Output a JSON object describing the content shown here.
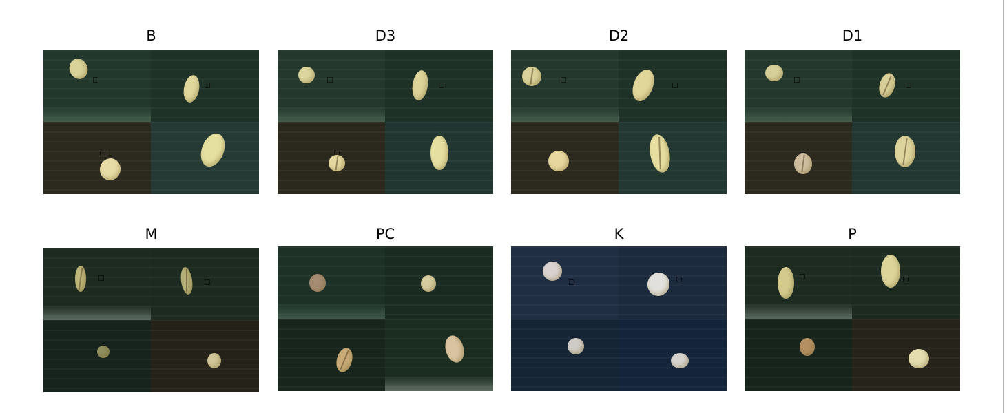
{
  "figure": {
    "panels": [
      {
        "label": "B"
      },
      {
        "label": "D3"
      },
      {
        "label": "D2"
      },
      {
        "label": "D1"
      },
      {
        "label": "M"
      },
      {
        "label": "PC"
      },
      {
        "label": "K"
      },
      {
        "label": "P"
      }
    ]
  }
}
